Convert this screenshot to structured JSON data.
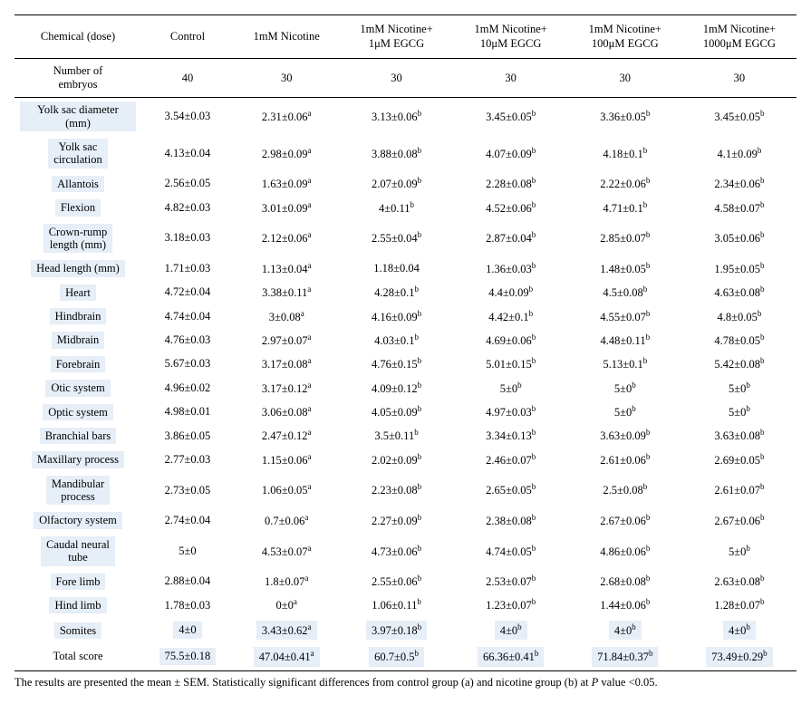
{
  "columns": [
    "Chemical (dose)",
    "Control",
    "1mM Nicotine",
    "1mM Nicotine+\n1μM EGCG",
    "1mM Nicotine+\n10μM EGCG",
    "1mM Nicotine+\n100μM EGCG",
    "1mM Nicotine+\n1000μM EGCG"
  ],
  "embryos": {
    "label": "Number of\nembryos",
    "values": [
      "40",
      "30",
      "30",
      "30",
      "30",
      "30"
    ]
  },
  "rows": [
    {
      "label": "Yolk sac diameter (mm)",
      "cells": [
        {
          "v": "3.54±0.03"
        },
        {
          "v": "2.31±0.06",
          "s": "a"
        },
        {
          "v": "3.13±0.06",
          "s": "b"
        },
        {
          "v": "3.45±0.05",
          "s": "b"
        },
        {
          "v": "3.36±0.05",
          "s": "b"
        },
        {
          "v": "3.45±0.05",
          "s": "b"
        }
      ]
    },
    {
      "label": "Yolk sac\ncirculation",
      "cells": [
        {
          "v": "4.13±0.04"
        },
        {
          "v": "2.98±0.09",
          "s": "a"
        },
        {
          "v": "3.88±0.08",
          "s": "b"
        },
        {
          "v": "4.07±0.09",
          "s": "b"
        },
        {
          "v": "4.18±0.1",
          "s": "b"
        },
        {
          "v": "4.1±0.09",
          "s": "b"
        }
      ]
    },
    {
      "label": "Allantois",
      "cells": [
        {
          "v": "2.56±0.05"
        },
        {
          "v": "1.63±0.09",
          "s": "a"
        },
        {
          "v": "2.07±0.09",
          "s": "b"
        },
        {
          "v": "2.28±0.08",
          "s": "b"
        },
        {
          "v": "2.22±0.06",
          "s": "b"
        },
        {
          "v": "2.34±0.06",
          "s": "b"
        }
      ]
    },
    {
      "label": "Flexion",
      "cells": [
        {
          "v": "4.82±0.03"
        },
        {
          "v": "3.01±0.09",
          "s": "a"
        },
        {
          "v": "4±0.11",
          "s": "b"
        },
        {
          "v": "4.52±0.06",
          "s": "b"
        },
        {
          "v": "4.71±0.1",
          "s": "b"
        },
        {
          "v": "4.58±0.07",
          "s": "b"
        }
      ]
    },
    {
      "label": "Crown-rump\nlength (mm)",
      "cells": [
        {
          "v": "3.18±0.03"
        },
        {
          "v": "2.12±0.06",
          "s": "a"
        },
        {
          "v": "2.55±0.04",
          "s": "b"
        },
        {
          "v": "2.87±0.04",
          "s": "b"
        },
        {
          "v": "2.85±0.07",
          "s": "b"
        },
        {
          "v": "3.05±0.06",
          "s": "b"
        }
      ]
    },
    {
      "label": "Head length (mm)",
      "cells": [
        {
          "v": "1.71±0.03"
        },
        {
          "v": "1.13±0.04",
          "s": "a"
        },
        {
          "v": "1.18±0.04"
        },
        {
          "v": "1.36±0.03",
          "s": "b"
        },
        {
          "v": "1.48±0.05",
          "s": "b"
        },
        {
          "v": "1.95±0.05",
          "s": "b"
        }
      ]
    },
    {
      "label": "Heart",
      "cells": [
        {
          "v": "4.72±0.04"
        },
        {
          "v": "3.38±0.11",
          "s": "a"
        },
        {
          "v": "4.28±0.1",
          "s": "b"
        },
        {
          "v": "4.4±0.09",
          "s": "b"
        },
        {
          "v": "4.5±0.08",
          "s": "b"
        },
        {
          "v": "4.63±0.08",
          "s": "b"
        }
      ]
    },
    {
      "label": "Hindbrain",
      "cells": [
        {
          "v": "4.74±0.04"
        },
        {
          "v": "3±0.08",
          "s": "a"
        },
        {
          "v": "4.16±0.09",
          "s": "b"
        },
        {
          "v": "4.42±0.1",
          "s": "b"
        },
        {
          "v": "4.55±0.07",
          "s": "b"
        },
        {
          "v": "4.8±0.05",
          "s": "b"
        }
      ]
    },
    {
      "label": "Midbrain",
      "cells": [
        {
          "v": "4.76±0.03"
        },
        {
          "v": "2.97±0.07",
          "s": "a"
        },
        {
          "v": "4.03±0.1",
          "s": "b"
        },
        {
          "v": "4.69±0.06",
          "s": "b"
        },
        {
          "v": "4.48±0.11",
          "s": "b"
        },
        {
          "v": "4.78±0.05",
          "s": "b"
        }
      ]
    },
    {
      "label": "Forebrain",
      "cells": [
        {
          "v": "5.67±0.03"
        },
        {
          "v": "3.17±0.08",
          "s": "a"
        },
        {
          "v": "4.76±0.15",
          "s": "b"
        },
        {
          "v": "5.01±0.15",
          "s": "b"
        },
        {
          "v": "5.13±0.1",
          "s": "b"
        },
        {
          "v": "5.42±0.08",
          "s": "b"
        }
      ]
    },
    {
      "label": "Otic system",
      "cells": [
        {
          "v": "4.96±0.02"
        },
        {
          "v": "3.17±0.12",
          "s": "a"
        },
        {
          "v": "4.09±0.12",
          "s": "b"
        },
        {
          "v": "5±0",
          "s": "b"
        },
        {
          "v": "5±0",
          "s": "b"
        },
        {
          "v": "5±0",
          "s": "b"
        }
      ]
    },
    {
      "label": "Optic system",
      "cells": [
        {
          "v": "4.98±0.01"
        },
        {
          "v": "3.06±0.08",
          "s": "a"
        },
        {
          "v": "4.05±0.09",
          "s": "b"
        },
        {
          "v": "4.97±0.03",
          "s": "b"
        },
        {
          "v": "5±0",
          "s": "b"
        },
        {
          "v": "5±0",
          "s": "b"
        }
      ]
    },
    {
      "label": "Branchial bars",
      "cells": [
        {
          "v": "3.86±0.05"
        },
        {
          "v": "2.47±0.12",
          "s": "a"
        },
        {
          "v": "3.5±0.11",
          "s": "b"
        },
        {
          "v": "3.34±0.13",
          "s": "b"
        },
        {
          "v": "3.63±0.09",
          "s": "b"
        },
        {
          "v": "3.63±0.08",
          "s": "b"
        }
      ]
    },
    {
      "label": "Maxillary process",
      "cells": [
        {
          "v": "2.77±0.03"
        },
        {
          "v": "1.15±0.06",
          "s": "a"
        },
        {
          "v": "2.02±0.09",
          "s": "b"
        },
        {
          "v": "2.46±0.07",
          "s": "b"
        },
        {
          "v": "2.61±0.06",
          "s": "b"
        },
        {
          "v": "2.69±0.05",
          "s": "b"
        }
      ]
    },
    {
      "label": "Mandibular\nprocess",
      "cells": [
        {
          "v": "2.73±0.05"
        },
        {
          "v": "1.06±0.05",
          "s": "a"
        },
        {
          "v": "2.23±0.08",
          "s": "b"
        },
        {
          "v": "2.65±0.05",
          "s": "b"
        },
        {
          "v": "2.5±0.08",
          "s": "b"
        },
        {
          "v": "2.61±0.07",
          "s": "b"
        }
      ]
    },
    {
      "label": "Olfactory system",
      "cells": [
        {
          "v": "2.74±0.04"
        },
        {
          "v": "0.7±0.06",
          "s": "a"
        },
        {
          "v": "2.27±0.09",
          "s": "b"
        },
        {
          "v": "2.38±0.08",
          "s": "b"
        },
        {
          "v": "2.67±0.06",
          "s": "b"
        },
        {
          "v": "2.67±0.06",
          "s": "b"
        }
      ]
    },
    {
      "label": "Caudal neural\ntube",
      "cells": [
        {
          "v": "5±0"
        },
        {
          "v": "4.53±0.07",
          "s": "a"
        },
        {
          "v": "4.73±0.06",
          "s": "b"
        },
        {
          "v": "4.74±0.05",
          "s": "b"
        },
        {
          "v": "4.86±0.06",
          "s": "b"
        },
        {
          "v": "5±0",
          "s": "b"
        }
      ]
    },
    {
      "label": "Fore limb",
      "cells": [
        {
          "v": "2.88±0.04"
        },
        {
          "v": "1.8±0.07",
          "s": "a"
        },
        {
          "v": "2.55±0.06",
          "s": "b"
        },
        {
          "v": "2.53±0.07",
          "s": "b"
        },
        {
          "v": "2.68±0.08",
          "s": "b"
        },
        {
          "v": "2.63±0.08",
          "s": "b"
        }
      ]
    },
    {
      "label": "Hind limb",
      "cells": [
        {
          "v": "1.78±0.03"
        },
        {
          "v": "0±0",
          "s": "a"
        },
        {
          "v": "1.06±0.11",
          "s": "b"
        },
        {
          "v": "1.23±0.07",
          "s": "b"
        },
        {
          "v": "1.44±0.06",
          "s": "b"
        },
        {
          "v": "1.28±0.07",
          "s": "b"
        }
      ]
    },
    {
      "label": "Somites",
      "hl": true,
      "cells": [
        {
          "v": "4±0"
        },
        {
          "v": "3.43±0.62",
          "s": "a"
        },
        {
          "v": "3.97±0.18",
          "s": "b"
        },
        {
          "v": "4±0",
          "s": "b"
        },
        {
          "v": "4±0",
          "s": "b"
        },
        {
          "v": "4±0",
          "s": "b"
        }
      ]
    }
  ],
  "total": {
    "label": "Total score",
    "cells": [
      {
        "v": "75.5±0.18"
      },
      {
        "v": "47.04±0.41",
        "s": "a"
      },
      {
        "v": "60.7±0.5",
        "s": "b"
      },
      {
        "v": "66.36±0.41",
        "s": "b"
      },
      {
        "v": "71.84±0.37",
        "s": "b"
      },
      {
        "v": "73.49±0.29",
        "s": "b"
      }
    ]
  },
  "footnote": "The results are presented the mean ± SEM. Statistically significant differences from control group (a) and nicotine group (b) at P value <0.05.",
  "colors": {
    "highlight": "#e6eef7",
    "border": "#000000",
    "bg": "#ffffff"
  }
}
